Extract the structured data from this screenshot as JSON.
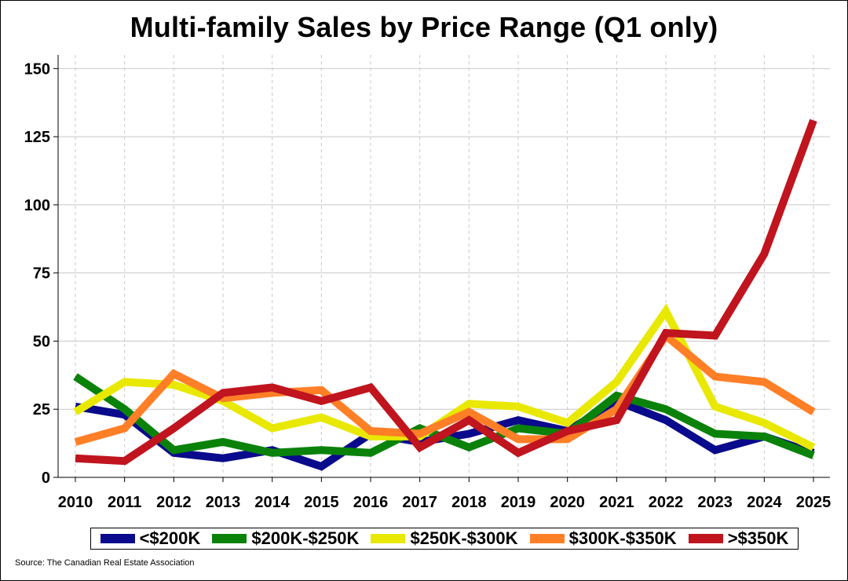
{
  "chart_data": {
    "type": "line",
    "title": "Multi-family Sales by Price Range (Q1 only)",
    "x": [
      2010,
      2011,
      2012,
      2013,
      2014,
      2015,
      2016,
      2017,
      2018,
      2019,
      2020,
      2021,
      2022,
      2023,
      2024,
      2025
    ],
    "x_tick_labels": [
      "2010",
      "2011",
      "2012",
      "2013",
      "2014",
      "2015",
      "2016",
      "2017",
      "2018",
      "2019",
      "2020",
      "2021",
      "2022",
      "2023",
      "2024",
      "2025"
    ],
    "y_ticks": [
      0,
      25,
      50,
      75,
      100,
      125,
      150
    ],
    "ylim": [
      0,
      155
    ],
    "xlabel": "",
    "ylabel": "",
    "grid": {
      "horizontal": true,
      "vertical": "dashed"
    },
    "legend_position": "bottom",
    "series": [
      {
        "name": "<$200K",
        "color": "#0a0a8c",
        "values": [
          26,
          23,
          9,
          7,
          10,
          4,
          16,
          13,
          16,
          21,
          17,
          28,
          21,
          10,
          15,
          9
        ]
      },
      {
        "name": "$200K-$250K",
        "color": "#0a820a",
        "values": [
          37,
          25,
          10,
          13,
          9,
          10,
          9,
          18,
          11,
          18,
          16,
          30,
          25,
          16,
          15,
          8
        ]
      },
      {
        "name": "$250K-$300K",
        "color": "#e8e800",
        "values": [
          24,
          35,
          34,
          28,
          18,
          22,
          15,
          15,
          27,
          26,
          20,
          35,
          61,
          26,
          20,
          11
        ]
      },
      {
        "name": "$300K-$350K",
        "color": "#ff7f27",
        "values": [
          13,
          18,
          38,
          29,
          31,
          32,
          17,
          16,
          24,
          14,
          14,
          25,
          52,
          37,
          35,
          24
        ]
      },
      {
        "name": ">$350K",
        "color": "#c0141e",
        "values": [
          7,
          6,
          18,
          31,
          33,
          28,
          33,
          11,
          21,
          9,
          17,
          21,
          53,
          52,
          82,
          131
        ]
      }
    ],
    "source": "Source: The Canadian Real Estate Association"
  },
  "legend": {
    "items": [
      {
        "label": "<$200K",
        "color": "#0a0a8c"
      },
      {
        "label": "$200K-$250K",
        "color": "#0a820a"
      },
      {
        "label": "$250K-$300K",
        "color": "#e8e800"
      },
      {
        "label": "$300K-$350K",
        "color": "#ff7f27"
      },
      {
        "label": ">$350K",
        "color": "#c0141e"
      }
    ]
  }
}
